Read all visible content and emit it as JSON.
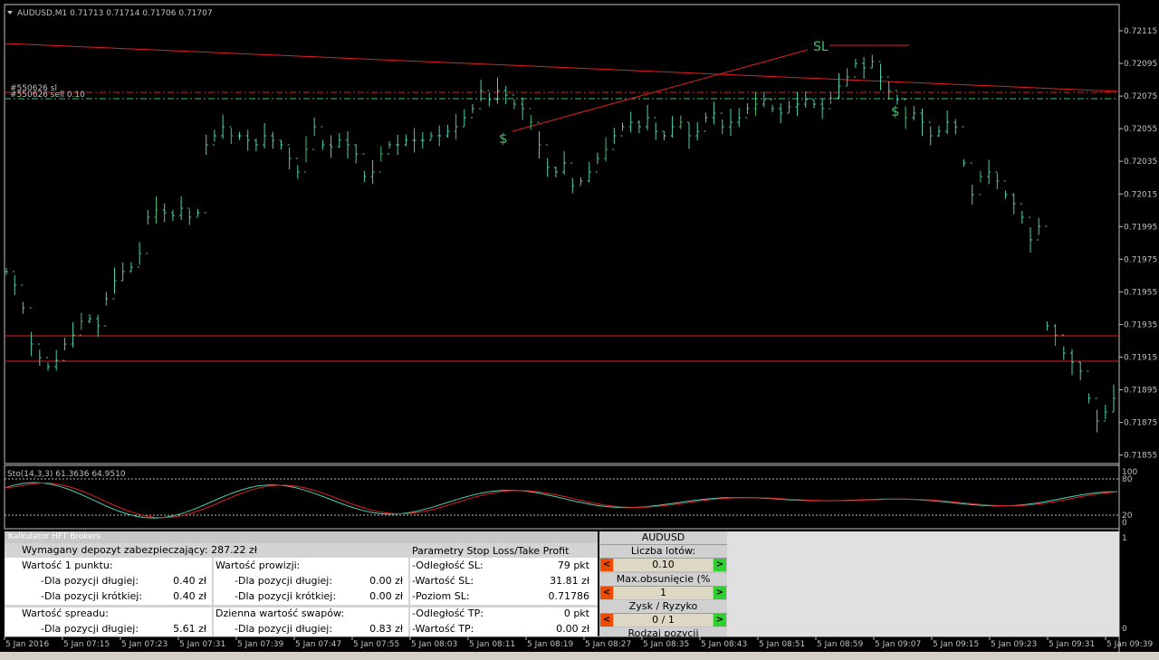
{
  "chart": {
    "header": "AUDUSD,M1  0.71713 0.71714 0.71706 0.71707",
    "price_ticks": [
      "0.72115",
      "0.72095",
      "0.72075",
      "0.72055",
      "0.72035",
      "0.72015",
      "0.71995",
      "0.71975",
      "0.71955",
      "0.71935",
      "0.71915",
      "0.71895",
      "0.71875",
      "0.71855"
    ],
    "time_ticks": [
      "5 Jan 2016",
      "5 Jan 07:15",
      "5 Jan 07:23",
      "5 Jan 07:31",
      "5 Jan 07:39",
      "5 Jan 07:47",
      "5 Jan 07:55",
      "5 Jan 08:03",
      "5 Jan 08:11",
      "5 Jan 08:19",
      "5 Jan 08:27",
      "5 Jan 08:35",
      "5 Jan 08:43",
      "5 Jan 08:51",
      "5 Jan 08:59",
      "5 Jan 09:07",
      "5 Jan 09:15",
      "5 Jan 09:23",
      "5 Jan 09:31",
      "5 Jan 09:39"
    ],
    "order_sl_label": "#550626 sl",
    "order_sell_label": "#550626 sell 0.10",
    "sl_marker": "SL",
    "dollar_marker": "$",
    "colors": {
      "candle": "#4fd0b0",
      "line": "#e02020",
      "level": "#40c070",
      "text": "#c0c0c0"
    }
  },
  "stochastic": {
    "label": "Sto(14,3,3) 61.3636 64.9510",
    "ticks": [
      "100",
      "80",
      "20",
      "0"
    ]
  },
  "calc_panel": {
    "title": "Kalkulator HFT Brokers",
    "deposit": "Wymagany depozyt zabezpieczający: 287.22 zł",
    "sltp_header": "Parametry Stop Loss/Take Profit",
    "point_value": "Wartość 1 punktu:",
    "long": "-Dla pozycji długiej:",
    "short": "-Dla pozycji krótkiej:",
    "point_long_val": "0.40 zł",
    "point_short_val": "0.40 zł",
    "commission": "Wartość prowizji:",
    "comm_long_val": "0.00 zł",
    "comm_short_val": "0.00 zł",
    "sl_distance": "-Odległość SL:",
    "sl_distance_val": "79 pkt",
    "sl_value": "-Wartość SL:",
    "sl_value_val": "31.81 zł",
    "sl_level": "-Poziom SL:",
    "sl_level_val": "0.71786",
    "spread": "Wartość spreadu:",
    "spread_long_val": "5.61 zł",
    "swap": "Dzienna wartość swapów:",
    "swap_long_val": "0.83 zł",
    "tp_distance": "-Odległość TP:",
    "tp_distance_val": "0 pkt",
    "tp_value": "-Wartość TP:",
    "tp_value_val": "0.00 zł"
  },
  "controls": {
    "symbol": "AUDUSD",
    "lots_label": "Liczba lotów:",
    "lots_value": "0.10",
    "drawdown_label": "Max.obsunięcie (% equity)",
    "drawdown_value": "1",
    "rr_label": "Zysk / Ryzyko",
    "rr_value": "0 / 1",
    "type_label": "Rodzaj pozycji",
    "minus": "<",
    "plus": ">"
  },
  "sub_axis": {
    "top": "1",
    "bottom": "0"
  }
}
